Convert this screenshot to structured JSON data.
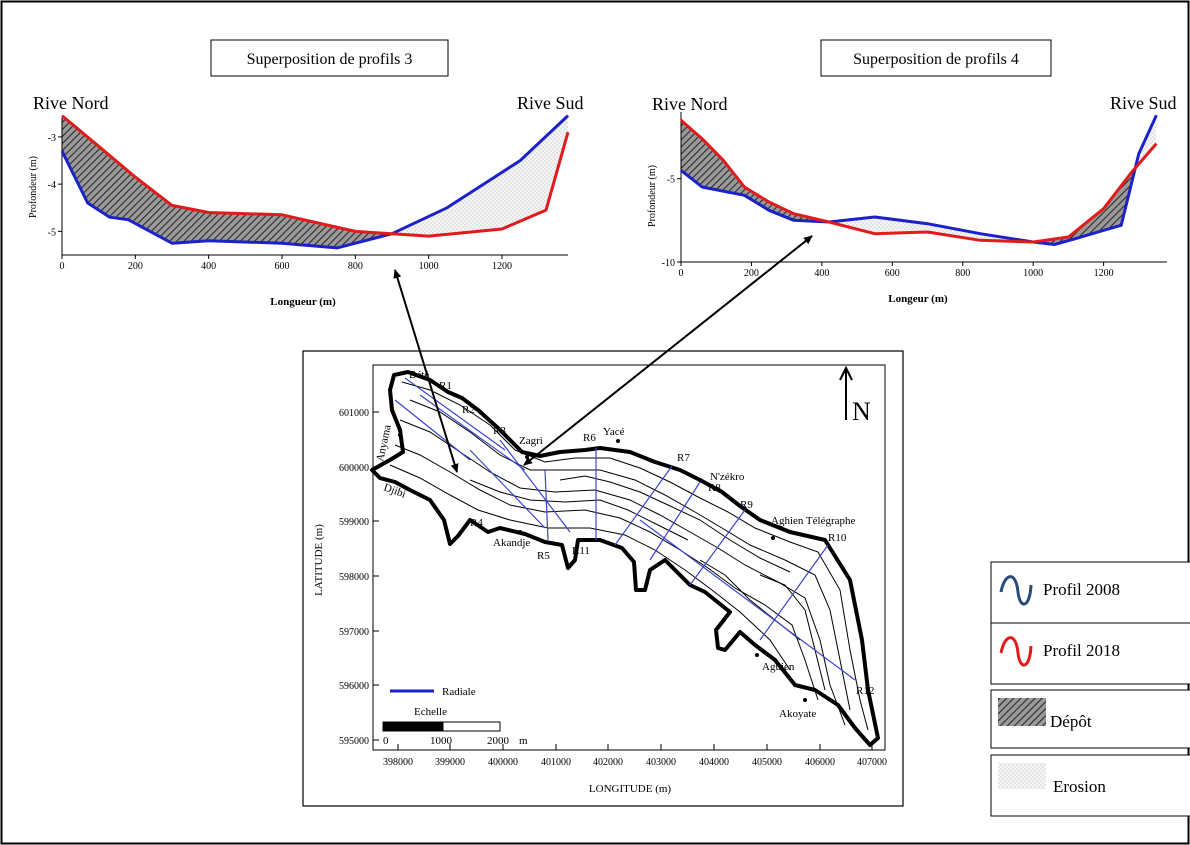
{
  "chart_data": [
    {
      "type": "line",
      "title": "Superposition de profils 3",
      "bank_left": "Rive Nord",
      "bank_right": "Rive Sud",
      "xlabel": "Longueur (m)",
      "ylabel": "Profondeur (m)",
      "xlim": [
        0,
        1380
      ],
      "ylim": [
        -5.5,
        -2.6
      ],
      "xticks": [
        0,
        200,
        400,
        600,
        800,
        1000,
        1200
      ],
      "yticks": [
        -3,
        -4,
        -5
      ],
      "series": [
        {
          "name": "Profil 2008",
          "color": "#1a22c8",
          "x": [
            0,
            70,
            130,
            180,
            300,
            400,
            600,
            750,
            900,
            1050,
            1150,
            1250,
            1380
          ],
          "y": [
            -3.3,
            -4.4,
            -4.7,
            -4.75,
            -5.25,
            -5.2,
            -5.25,
            -5.35,
            -5.05,
            -4.5,
            -4.0,
            -3.5,
            -2.55
          ]
        },
        {
          "name": "Profil 2018",
          "color": "#e01b1b",
          "x": [
            0,
            100,
            200,
            300,
            400,
            600,
            800,
            900,
            1000,
            1200,
            1320,
            1380
          ],
          "y": [
            -2.55,
            -3.2,
            -3.85,
            -4.45,
            -4.6,
            -4.65,
            -5.0,
            -5.05,
            -5.1,
            -4.95,
            -4.55,
            -2.9
          ]
        }
      ]
    },
    {
      "type": "line",
      "title": "Superposition de profils 4",
      "bank_left": "Rive Nord",
      "bank_right": "Rive Sud",
      "xlabel": "Longeur (m)",
      "ylabel": "Profondeur (m)",
      "xlim": [
        0,
        1380
      ],
      "ylim": [
        -10,
        -1
      ],
      "xticks": [
        0,
        200,
        400,
        600,
        800,
        1000,
        1200
      ],
      "yticks": [
        -5,
        -10
      ],
      "series": [
        {
          "name": "Profil 2008",
          "color": "#1a22c8",
          "x": [
            0,
            60,
            180,
            250,
            320,
            420,
            550,
            700,
            850,
            1000,
            1060,
            1120,
            1200,
            1250,
            1300,
            1350
          ],
          "y": [
            -4.5,
            -5.5,
            -6.0,
            -6.9,
            -7.5,
            -7.6,
            -7.3,
            -7.7,
            -8.3,
            -8.8,
            -8.95,
            -8.6,
            -8.1,
            -7.8,
            -3.5,
            -1.2
          ]
        },
        {
          "name": "Profil 2018",
          "color": "#e01b1b",
          "x": [
            0,
            60,
            120,
            180,
            250,
            320,
            420,
            550,
            700,
            850,
            1000,
            1100,
            1200,
            1280,
            1350
          ],
          "y": [
            -1.5,
            -2.6,
            -3.9,
            -5.5,
            -6.4,
            -7.1,
            -7.6,
            -8.3,
            -8.2,
            -8.7,
            -8.8,
            -8.5,
            -6.8,
            -4.6,
            -2.9
          ]
        }
      ]
    }
  ],
  "map": {
    "xlabel": "LONGITUDE (m)",
    "ylabel": "LATITUDE (m)",
    "xticks": [
      "398000",
      "399000",
      "400000",
      "401000",
      "402000",
      "403000",
      "404000",
      "405000",
      "406000",
      "407000"
    ],
    "yticks": [
      "601000",
      "600000",
      "599000",
      "598000",
      "597000",
      "596000",
      "595000"
    ],
    "north": "N",
    "radiale_label": "Radiale",
    "scale_title": "Echelle",
    "scale_ticks": [
      "0",
      "1000",
      "2000"
    ],
    "scale_unit": "m",
    "places": [
      "Bété",
      "Anyama",
      "Djibi",
      "Zagri",
      "Yacé",
      "N'zékro",
      "Akandje",
      "Aghien Télégraphe",
      "Aguien",
      "Akoyate"
    ],
    "radials": [
      "R1",
      "R2",
      "R3",
      "R4",
      "R5",
      "R6",
      "R7",
      "R8",
      "R9",
      "R10",
      "R11",
      "R12"
    ]
  },
  "legend": {
    "profil_2008": "Profil 2008",
    "profil_2018": "Profil 2018",
    "depot": "Dépôt",
    "erosion": "Erosion"
  },
  "colors": {
    "blue": "#1a22c8",
    "red": "#e01b1b",
    "radial": "#3b45d0"
  }
}
